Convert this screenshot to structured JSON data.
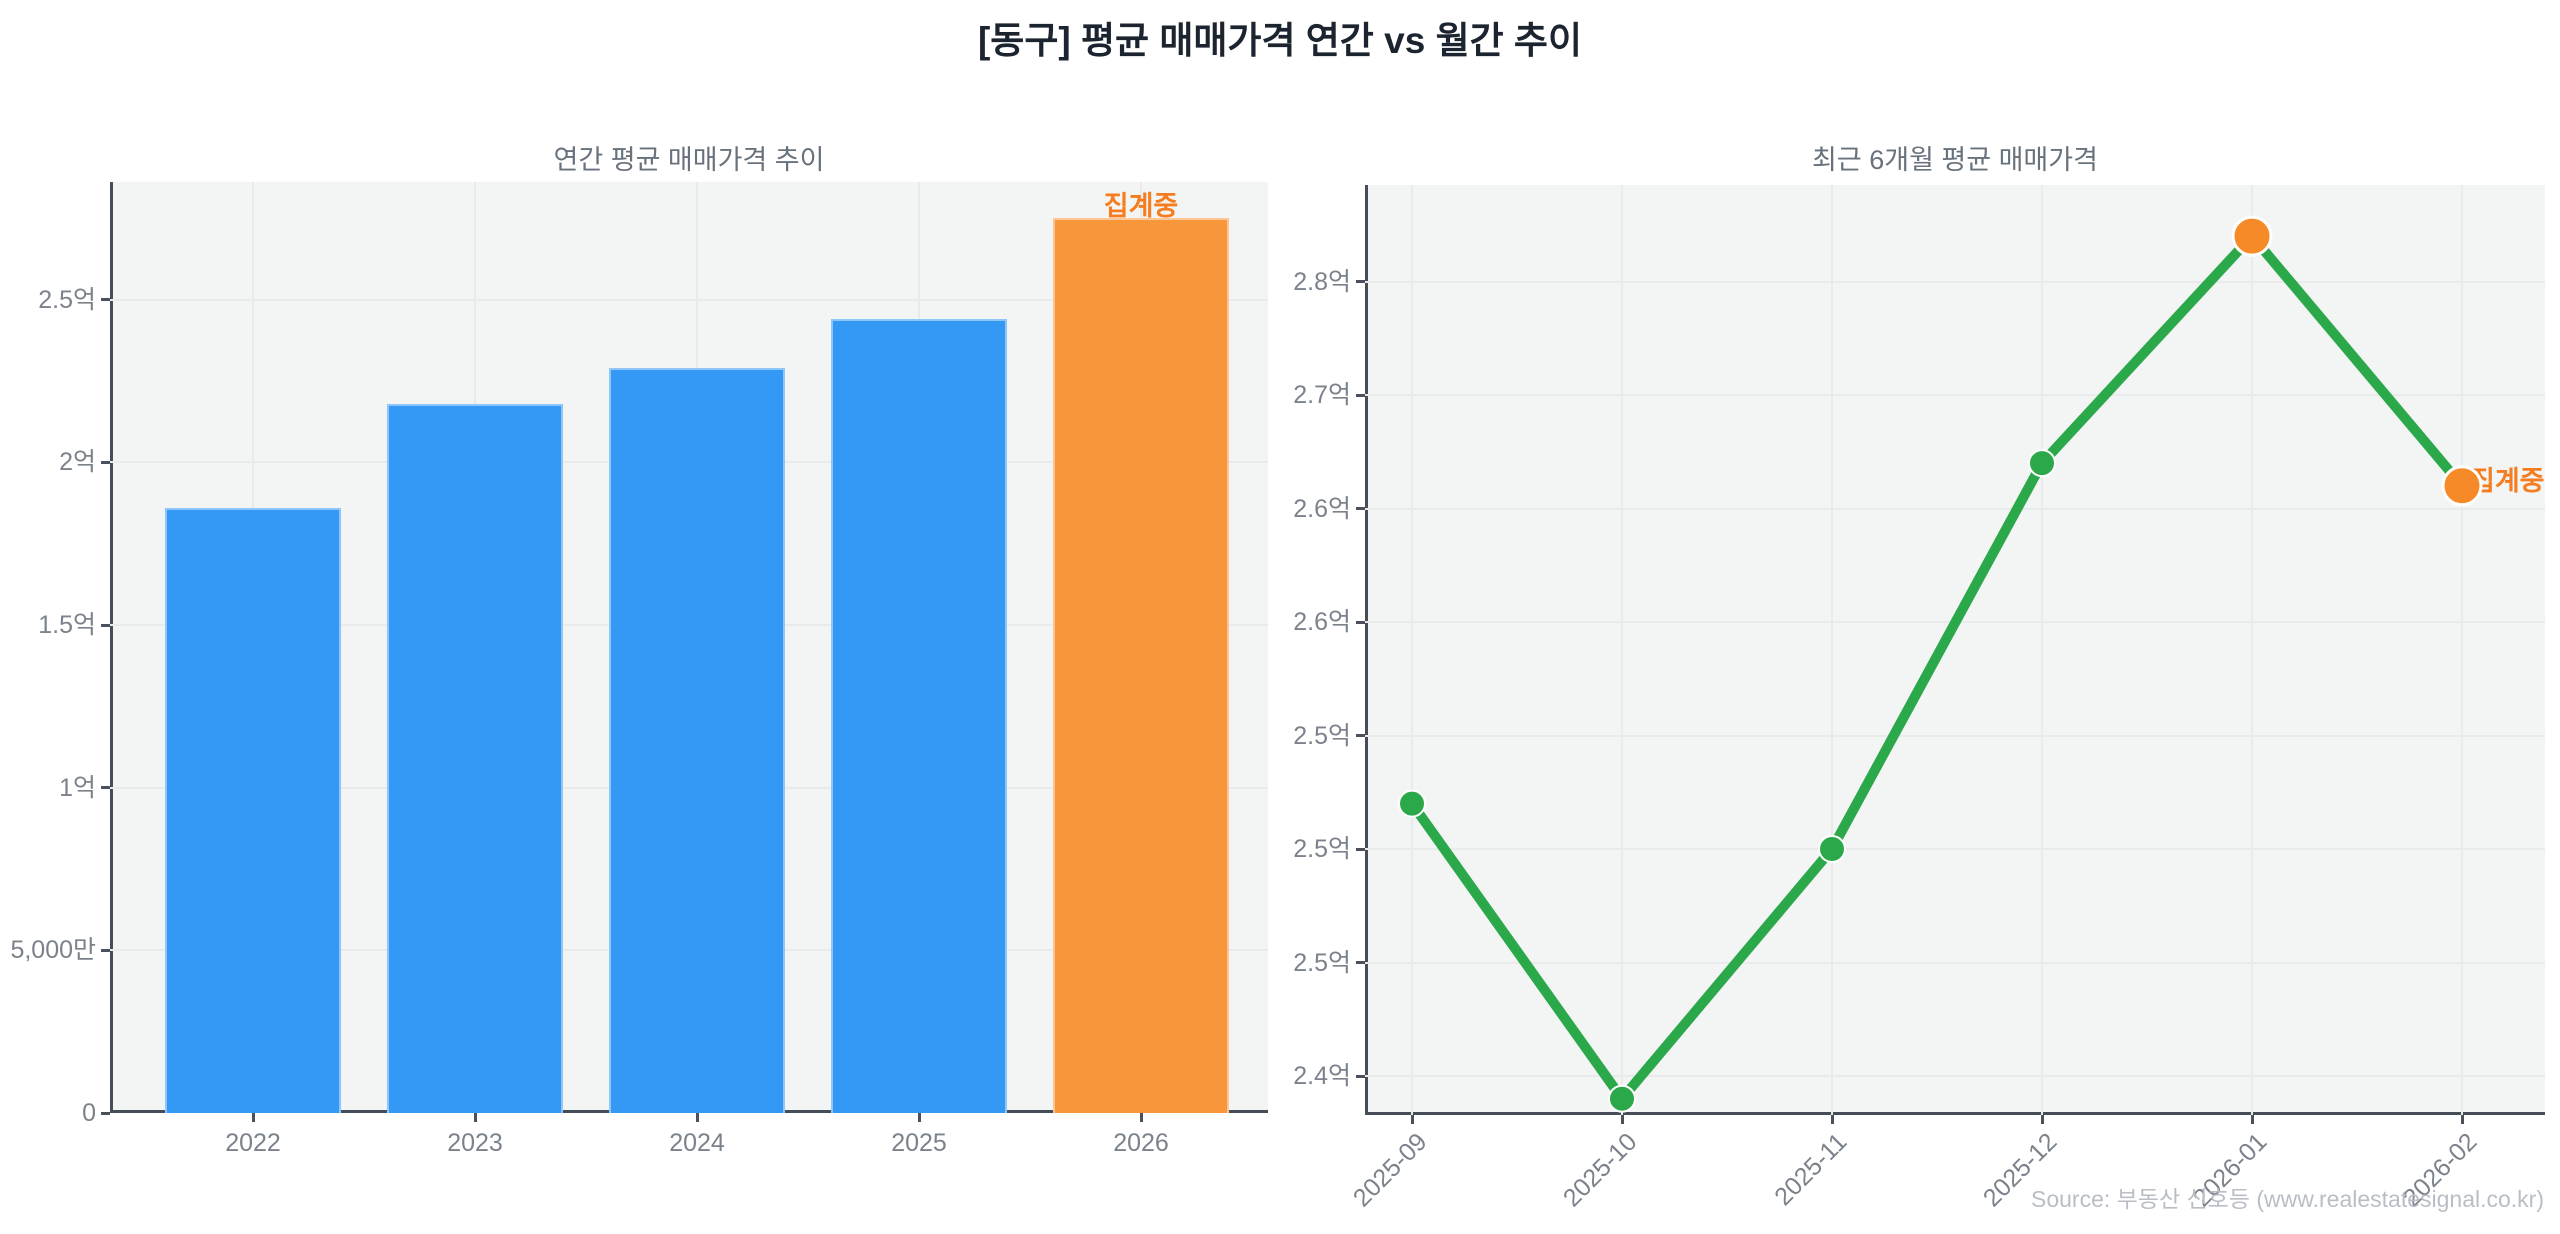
{
  "title": "[동구] 평균 매매가격 연간 vs 월간 추이",
  "source_note": "Source: 부동산 신호등 (www.realestatesignal.co.kr)",
  "colors": {
    "bar_blue": "#3498f5",
    "bar_orange": "#f8963c",
    "line_green": "#2ba84a",
    "marker_orange": "#f78a28",
    "aggregating_text": "#f57d1f",
    "axis_text": "#7b828c",
    "chart_title_text": "#68727d",
    "main_title_text": "#1c2430",
    "source_text": "#b9bec6",
    "plot_background": "#f3f4f4",
    "gridline": "#e9eaeb",
    "axis_line": "#454d58"
  },
  "chart_data": [
    {
      "type": "bar",
      "title": "연간 평균 매매가격 추이",
      "categories": [
        "2022",
        "2023",
        "2024",
        "2025",
        "2026"
      ],
      "values": [
        1.86,
        2.18,
        2.29,
        2.44,
        2.75
      ],
      "unit": "억원",
      "ylim": [
        0,
        2.86
      ],
      "grid": true,
      "legend": false,
      "yticks": [
        {
          "value": 0,
          "label": "0"
        },
        {
          "value": 0.5,
          "label": "5,000만"
        },
        {
          "value": 1,
          "label": "1억"
        },
        {
          "value": 1.5,
          "label": "1.5억"
        },
        {
          "value": 2,
          "label": "2억"
        },
        {
          "value": 2.5,
          "label": "2.5억"
        }
      ],
      "bar_colors": [
        "#3498f5",
        "#3498f5",
        "#3498f5",
        "#3498f5",
        "#f8963c"
      ],
      "annotation": {
        "text": "집계중",
        "target": "2026"
      }
    },
    {
      "type": "line",
      "title": "최근 6개월 평균 매매가격",
      "x": [
        "2025-09",
        "2025-10",
        "2025-11",
        "2025-12",
        "2026-01",
        "2026-02"
      ],
      "values": [
        2.52,
        2.39,
        2.5,
        2.67,
        2.77,
        2.66
      ],
      "unit": "억원",
      "ylim": [
        2.38,
        2.87
      ],
      "grid": true,
      "legend": false,
      "yticks": [
        {
          "value": 2.4,
          "label": "2.4억"
        },
        {
          "value": 2.45,
          "label": "2.5억"
        },
        {
          "value": 2.5,
          "label": "2.5억"
        },
        {
          "value": 2.55,
          "label": "2.5억"
        },
        {
          "value": 2.6,
          "label": "2.6억"
        },
        {
          "value": 2.65,
          "label": "2.6억"
        },
        {
          "value": 2.7,
          "label": "2.7억"
        },
        {
          "value": 2.75,
          "label": "2.8억"
        }
      ],
      "line_color": "#2ba84a",
      "marker_colors": [
        "#2ba84a",
        "#2ba84a",
        "#2ba84a",
        "#2ba84a",
        "#f78a28",
        "#f78a28"
      ],
      "marker_sizes": [
        13,
        13,
        13,
        13,
        19,
        19
      ],
      "annotation": {
        "text": "집계중",
        "target": "2026-02"
      }
    }
  ]
}
